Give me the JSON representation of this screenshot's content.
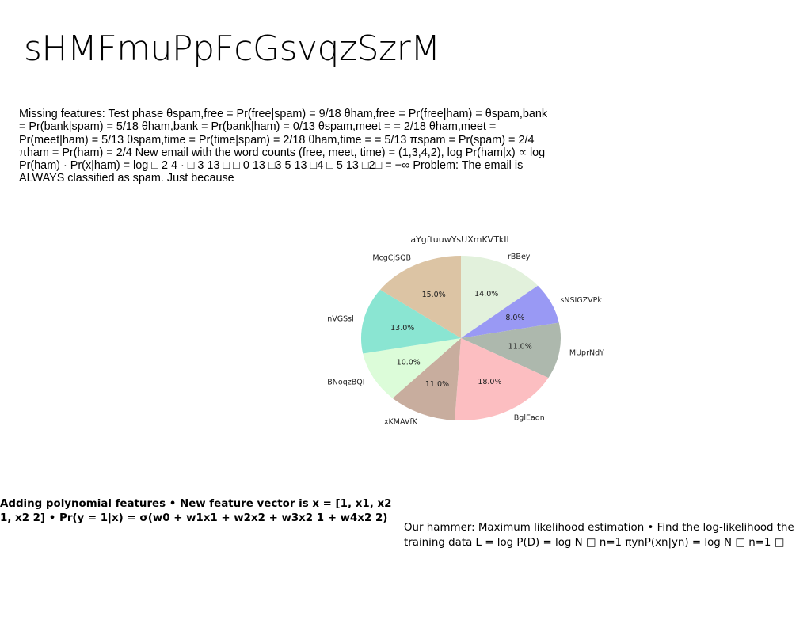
{
  "page": {
    "title": "sHMFmuPpFcGsvqzSzrM",
    "missing_features_text": "Missing features: Test phase θspam,free = Pr(free|spam) = 9/18 θham,free = Pr(free|ham) = θspam,bank = Pr(bank|spam) = 5/18 θham,bank = Pr(bank|ham) = 0/13 θspam,meet = = 2/18 θham,meet = Pr(meet|ham) = 5/13 θspam,time = Pr(time|spam) = 2/18 θham,time = = 5/13 πspam = Pr(spam) = 2/4 πham = Pr(ham) = 2/4 New email with the word counts (free, meet, time) = (1,3,4,2), log Pr(ham|x) ∝ log Pr(ham) · Pr(x|ham) = log □ 2 4 · □ 3 13 □ □ 0 13 □3 5 13 □4 □ 5 13 □2□ = −∞ Problem: The email is ALWAYS classified as spam. Just because",
    "polynomial_text": "Adding polynomial features • New feature vector is x = [1, x1, x2 1, x2 2] • Pr(y = 1|x) = σ(w0 + w1x1 + w2x2 + w3x2 1 + w4x2 2)",
    "hammer_text": "Our hammer: Maximum likelihood estimation • Find the log-likelihood the training data L = log P(D) = log N □ n=1 πynP(xn|yn) = log N □ n=1 □"
  },
  "chart_data": {
    "type": "pie",
    "title": "aYgftuuwYsUXmKVTkIL",
    "labels": [
      "rBBey",
      "sNSIGZVPk",
      "MUprNdY",
      "BglEadn",
      "xKMAVfK",
      "BNoqzBQI",
      "nVGSsl",
      "McgCjSQB"
    ],
    "values": [
      14.0,
      8.0,
      11.0,
      18.0,
      11.0,
      10.0,
      13.0,
      15.0
    ],
    "pct_labels": [
      "14.0%",
      "8.0%",
      "11.0%",
      "18.0%",
      "11.0%",
      "10.0%",
      "13.0%",
      "15.0%"
    ],
    "colors": [
      "#e2f1dc",
      "#9999f4",
      "#adb8ad",
      "#fcbec1",
      "#c8ad9e",
      "#dcfcd9",
      "#8ae5d2",
      "#dcc4a4"
    ],
    "start_angle_deg": 90,
    "direction": "clockwise",
    "legend": "none"
  }
}
